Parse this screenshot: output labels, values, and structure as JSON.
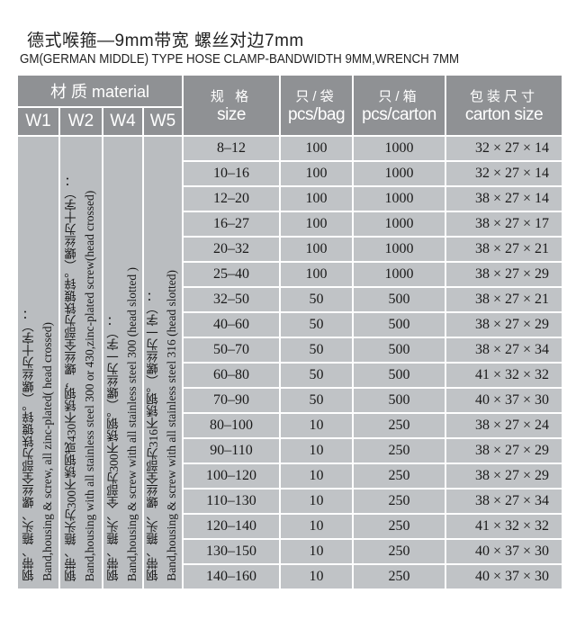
{
  "title_cn": "德式喉箍—9mm带宽   螺丝对边7mm",
  "title_en": "GM(GERMAN MIDDLE) TYPE HOSE CLAMP-BANDWIDTH 9MM,WRENCH 7MM",
  "header": {
    "material": "材 质 material",
    "w_codes": [
      "W1",
      "W2",
      "W4",
      "W5"
    ],
    "size_cn": "规 格",
    "size_en": "size",
    "bag_cn": "只/袋",
    "bag_en": "pcs/bag",
    "carton_cn": "只/箱",
    "carton_en": "pcs/carton",
    "cs_cn": "包装尺寸",
    "cs_en": "carton size"
  },
  "materials": [
    {
      "cn": "钢带、箍头、螺丝全部为铁镀锌。（螺丝为十字）：",
      "en": "Band,housing & screw, all zinc-plated( head crossed)"
    },
    {
      "cn": "钢带、箍头为300不锈钢或430不锈钢，螺丝全部为铁镀锌。（螺丝为十字）：",
      "en": "Band,housing with all stainless steel 300 or 430,zinc-plated screw(head crossed)"
    },
    {
      "cn": "钢带、箍头、全部为300不锈钢。（螺丝为一字）：",
      "en": "Band,housing & screw with all stainless steel 300 (head slotted )"
    },
    {
      "cn": "钢带、箍头、螺丝全部为316不锈钢。（螺丝为一字）：",
      "en": "Band,housing & screw with all stainless steel 316 (head slotted)"
    }
  ],
  "rows": [
    [
      "8–12",
      "100",
      "1000",
      "32 × 27 × 14"
    ],
    [
      "10–16",
      "100",
      "1000",
      "32 × 27 × 14"
    ],
    [
      "12–20",
      "100",
      "1000",
      "38 × 27 × 14"
    ],
    [
      "16–27",
      "100",
      "1000",
      "38 × 27 × 17"
    ],
    [
      "20–32",
      "100",
      "1000",
      "38 × 27 × 21"
    ],
    [
      "25–40",
      "100",
      "1000",
      "38 × 27 × 29"
    ],
    [
      "32–50",
      "50",
      "500",
      "38 × 27 × 21"
    ],
    [
      "40–60",
      "50",
      "500",
      "38 × 27 × 29"
    ],
    [
      "50–70",
      "50",
      "500",
      "38 × 27 × 34"
    ],
    [
      "60–80",
      "50",
      "500",
      "41 × 32 × 32"
    ],
    [
      "70–90",
      "50",
      "500",
      "40 × 37 × 30"
    ],
    [
      "80–100",
      "10",
      "250",
      "38 × 27 × 24"
    ],
    [
      "90–110",
      "10",
      "250",
      "38 × 27 × 29"
    ],
    [
      "100–120",
      "10",
      "250",
      "38 × 27 × 29"
    ],
    [
      "110–130",
      "10",
      "250",
      "38 × 27 × 34"
    ],
    [
      "120–140",
      "10",
      "250",
      "41 × 32 × 32"
    ],
    [
      "130–150",
      "10",
      "250",
      "40 × 37 × 30"
    ],
    [
      "140–160",
      "10",
      "250",
      "40 × 37 × 30"
    ]
  ]
}
